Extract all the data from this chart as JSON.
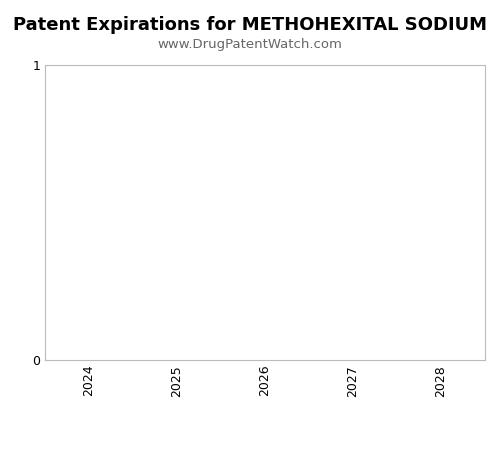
{
  "title": "Patent Expirations for METHOHEXITAL SODIUM",
  "subtitle": "www.DrugPatentWatch.com",
  "xlim": [
    2023.5,
    2028.5
  ],
  "ylim": [
    0,
    1
  ],
  "yticks": [
    0,
    1
  ],
  "xticks": [
    2024,
    2025,
    2026,
    2027,
    2028
  ],
  "title_fontsize": 13,
  "subtitle_fontsize": 9.5,
  "tick_fontsize": 9,
  "background_color": "#ffffff",
  "plot_bg_color": "#ffffff",
  "spine_color": "#bbbbbb"
}
